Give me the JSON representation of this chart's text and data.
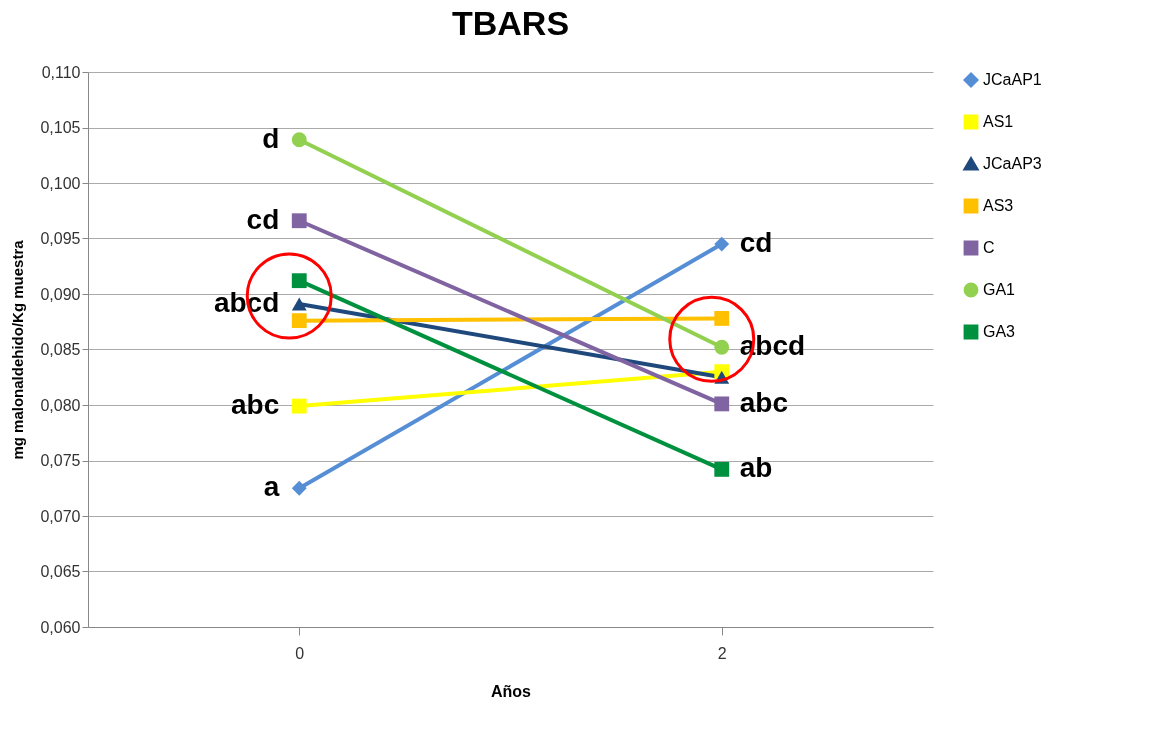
{
  "chart_data": {
    "type": "line",
    "title": "TBARS",
    "xlabel": "Años",
    "ylabel": "mg malonaldehido/Kg muestra",
    "categories": [
      "0",
      "2"
    ],
    "series": [
      {
        "name": "JCaAP1",
        "color": "#558ed5",
        "marker": "diamond",
        "values": [
          0.0725,
          0.0945
        ]
      },
      {
        "name": "AS1",
        "color": "#ffff00",
        "marker": "square",
        "values": [
          0.0799,
          0.083
        ]
      },
      {
        "name": "JCaAP3",
        "color": "#1f497d",
        "marker": "triangle",
        "values": [
          0.0891,
          0.0825
        ]
      },
      {
        "name": "AS3",
        "color": "#ffc000",
        "marker": "square",
        "values": [
          0.0876,
          0.0878
        ]
      },
      {
        "name": "C",
        "color": "#8064a2",
        "marker": "square",
        "values": [
          0.0966,
          0.0801
        ]
      },
      {
        "name": "GA1",
        "color": "#92d050",
        "marker": "circle",
        "values": [
          0.1039,
          0.0852
        ]
      },
      {
        "name": "GA3",
        "color": "#00913f",
        "marker": "square",
        "values": [
          0.0912,
          0.0742
        ]
      }
    ],
    "ylim": [
      0.06,
      0.11
    ],
    "yticks": [
      {
        "value": 0.06,
        "label": "0,060"
      },
      {
        "value": 0.065,
        "label": "0,065"
      },
      {
        "value": 0.07,
        "label": "0,070"
      },
      {
        "value": 0.075,
        "label": "0,075"
      },
      {
        "value": 0.08,
        "label": "0,080"
      },
      {
        "value": 0.085,
        "label": "0,085"
      },
      {
        "value": 0.09,
        "label": "0,090"
      },
      {
        "value": 0.095,
        "label": "0,095"
      },
      {
        "value": 0.1,
        "label": "0,100"
      },
      {
        "value": 0.105,
        "label": "0,105"
      },
      {
        "value": 0.11,
        "label": "0,110"
      }
    ],
    "annotations": [
      {
        "text": "d",
        "x": "0",
        "y": 0.1039
      },
      {
        "text": "cd",
        "x": "0",
        "y": 0.0966
      },
      {
        "text": "abcd",
        "x": "0",
        "y": 0.0891
      },
      {
        "text": "abc",
        "x": "0",
        "y": 0.0799
      },
      {
        "text": "a",
        "x": "0",
        "y": 0.0725
      },
      {
        "text": "cd",
        "x": "2",
        "y": 0.0945
      },
      {
        "text": "abcd",
        "x": "2",
        "y": 0.0852
      },
      {
        "text": "abc",
        "x": "2",
        "y": 0.0801
      },
      {
        "text": "ab",
        "x": "2",
        "y": 0.0742
      }
    ],
    "grid": "y",
    "legend": "right",
    "line_style": "solid"
  }
}
